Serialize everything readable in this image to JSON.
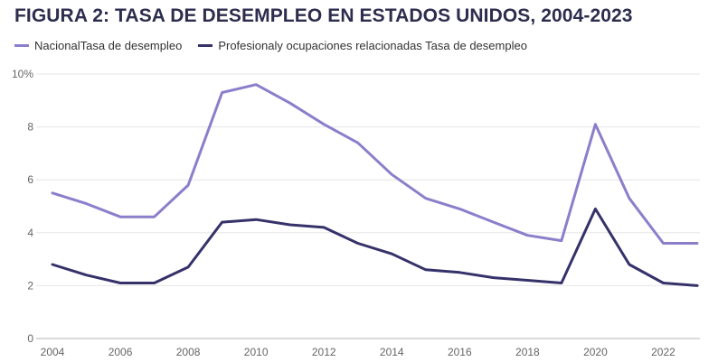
{
  "chart_data": {
    "type": "line",
    "title": "FIGURA 2: TASA DE DESEMPLEO EN ESTADOS UNIDOS, 2004-2023",
    "xlabel": "",
    "ylabel": "",
    "x": [
      2004,
      2005,
      2006,
      2007,
      2008,
      2009,
      2010,
      2011,
      2012,
      2013,
      2014,
      2015,
      2016,
      2017,
      2018,
      2019,
      2020,
      2021,
      2022,
      2023
    ],
    "series": [
      {
        "name": "NacionalTasa de desempleo",
        "color": "#8b7ecb",
        "values": [
          5.5,
          5.1,
          4.6,
          4.6,
          5.8,
          9.3,
          9.6,
          8.9,
          8.1,
          7.4,
          6.2,
          5.3,
          4.9,
          4.4,
          3.9,
          3.7,
          8.1,
          5.3,
          3.6,
          3.6
        ]
      },
      {
        "name": "Profesionaly ocupaciones relacionadas Tasa de desempleo",
        "color": "#35326a",
        "values": [
          2.8,
          2.4,
          2.1,
          2.1,
          2.7,
          4.4,
          4.5,
          4.3,
          4.2,
          3.6,
          3.2,
          2.6,
          2.5,
          2.3,
          2.2,
          2.1,
          4.9,
          2.8,
          2.1,
          2.0
        ]
      }
    ],
    "ylim": [
      0,
      10
    ],
    "y_ticks": [
      {
        "value": 0,
        "label": "0"
      },
      {
        "value": 2,
        "label": "2"
      },
      {
        "value": 4,
        "label": "4"
      },
      {
        "value": 6,
        "label": "6"
      },
      {
        "value": 8,
        "label": "8"
      },
      {
        "value": 10,
        "label": "10%"
      }
    ],
    "x_ticks": [
      2004,
      2006,
      2008,
      2010,
      2012,
      2014,
      2016,
      2018,
      2020,
      2022
    ],
    "grid": true,
    "legend_position": "top-left"
  }
}
